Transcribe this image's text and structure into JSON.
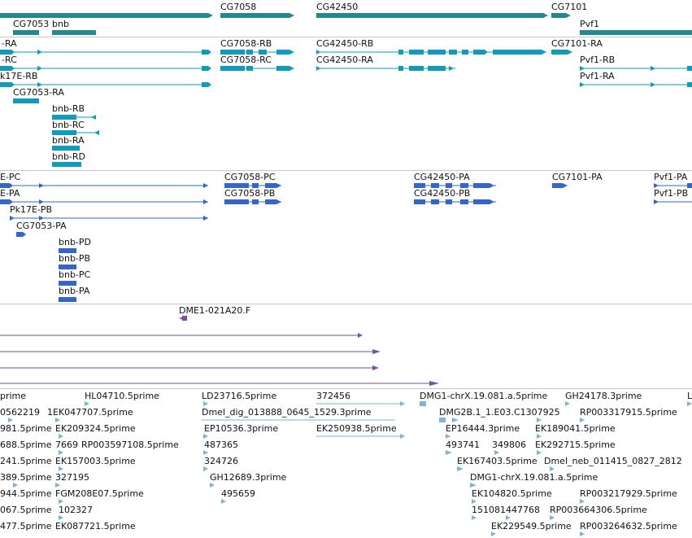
{
  "colors": {
    "gene": "#23898f",
    "mrna": "#0f9bbb",
    "cds": "#3366cc",
    "est": "#7a4fa8",
    "cdna": "#7fb2dd",
    "separator": "#c8c8c8",
    "label": "#111111"
  },
  "tracks": {
    "genes": {
      "labels": [
        "CG7058",
        "CG42450",
        "CG7101",
        "CG7053",
        "bnb",
        "Pvf1"
      ]
    },
    "transcripts": {
      "labels": [
        "-RA",
        "CG7058-RB",
        "CG42450-RB",
        "CG7101-RA",
        "-RC",
        "CG7058-RC",
        "CG42450-RA",
        "Pvf1-RB",
        "k17E-RB",
        "Pvf1-RA",
        "CG7053-RA",
        "bnb-RB",
        "bnb-RC",
        "bnb-RA",
        "bnb-RD"
      ]
    },
    "proteins": {
      "labels": [
        "E-PC",
        "CG7058-PC",
        "CG42450-PA",
        "CG7101-PA",
        "Pvf1-PA",
        "E-PA",
        "CG7058-PB",
        "CG42450-PB",
        "Pvf1-PB",
        "Pk17E-PB",
        "CG7053-PA",
        "bnb-PD",
        "bnb-PB",
        "bnb-PC",
        "bnb-PA"
      ]
    },
    "ests": {
      "labels": [
        "DME1-021A20.F"
      ]
    },
    "cdnas": {
      "labels": [
        "prime",
        "HL04710.5prime",
        "LD23716.5prime",
        "372456",
        "DMG1-chrX.19.081.a.5prime",
        "GH24178.3prime",
        "L",
        "0562219",
        "1EK047707.5prime",
        "Dmel_dig_013888_0645_1529.3prime",
        "DMG2B.1_1.E03.C1307925",
        "RP003317915.5prime",
        "981.5prime",
        "EK209324.5prime",
        "EP10536.3prime",
        "EK250938.5prime",
        "EP16444.3prime",
        "EK189041.5prime",
        "688.5prime",
        "7669",
        "RP003597108.5prime",
        "487365",
        "493741",
        "349806",
        "EK292715.5prime",
        "241.5prime",
        "EK157003.5prime",
        "324726",
        "EK167403.5prime",
        "Dmel_neb_011415_0827_2812",
        "389.5prime",
        "327195",
        "GH12689.3prime",
        "DMG1-chrX.19.081.a.5prime",
        "944.5prime",
        "FGM208E07.5prime",
        "495659",
        "EK104820.5prime",
        "RP003217929.5prime",
        "067.5prime",
        "102327",
        "151081",
        "447768",
        "RP003664306.5prime",
        "477.5prime",
        "EK087721.5prime",
        "EK229549.5prime",
        "RP003264632.5prime"
      ]
    }
  }
}
